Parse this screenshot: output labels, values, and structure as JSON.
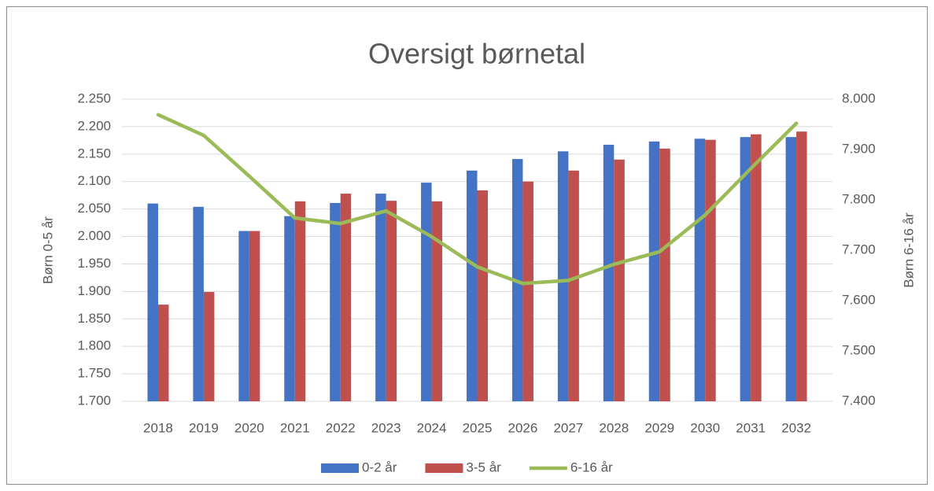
{
  "chart_data": {
    "type": "bar",
    "title": "Oversigt børnetal",
    "y_label": "Børn 0-5 år",
    "y2_label": "Børn 6-16 år",
    "categories": [
      "2018",
      "2019",
      "2020",
      "2021",
      "2022",
      "2023",
      "2024",
      "2025",
      "2026",
      "2027",
      "2028",
      "2029",
      "2030",
      "2031",
      "2032"
    ],
    "series": [
      {
        "name": "0-2 år",
        "color": "#4472c4",
        "values": [
          2060,
          2054,
          2010,
          2037,
          2061,
          2078,
          2098,
          2120,
          2141,
          2155,
          2167,
          2173,
          2178,
          2181,
          2181
        ]
      },
      {
        "name": "3-5 år",
        "color": "#c0504d",
        "values": [
          1876,
          1899,
          2010,
          2064,
          2078,
          2065,
          2064,
          2084,
          2100,
          2120,
          2140,
          2160,
          2176,
          2186,
          2191
        ]
      },
      {
        "name": "6-16 år",
        "color": "#9bbb59",
        "type": "line",
        "axis": "y2",
        "values": [
          7969,
          7928,
          7847,
          7764,
          7753,
          7778,
          7727,
          7667,
          7634,
          7640,
          7672,
          7697,
          7770,
          7862,
          7952
        ]
      }
    ],
    "ylim": [
      1700,
      2250
    ],
    "yticks": [
      {
        "value": 1700,
        "label": "1.700"
      },
      {
        "value": 1750,
        "label": "1.750"
      },
      {
        "value": 1800,
        "label": "1.800"
      },
      {
        "value": 1850,
        "label": "1.850"
      },
      {
        "value": 1900,
        "label": "1.900"
      },
      {
        "value": 1950,
        "label": "1.950"
      },
      {
        "value": 2000,
        "label": "2.000"
      },
      {
        "value": 2050,
        "label": "2.050"
      },
      {
        "value": 2100,
        "label": "2.100"
      },
      {
        "value": 2150,
        "label": "2.150"
      },
      {
        "value": 2200,
        "label": "2.200"
      },
      {
        "value": 2250,
        "label": "2.250"
      }
    ],
    "y2lim": [
      7400,
      8000
    ],
    "y2ticks": [
      {
        "value": 7400,
        "label": "7.400"
      },
      {
        "value": 7500,
        "label": "7.500"
      },
      {
        "value": 7600,
        "label": "7.600"
      },
      {
        "value": 7700,
        "label": "7.700"
      },
      {
        "value": 7800,
        "label": "7.800"
      },
      {
        "value": 7900,
        "label": "7.900"
      },
      {
        "value": 8000,
        "label": "8.000"
      }
    ],
    "grid": true,
    "legend": "bottom"
  }
}
